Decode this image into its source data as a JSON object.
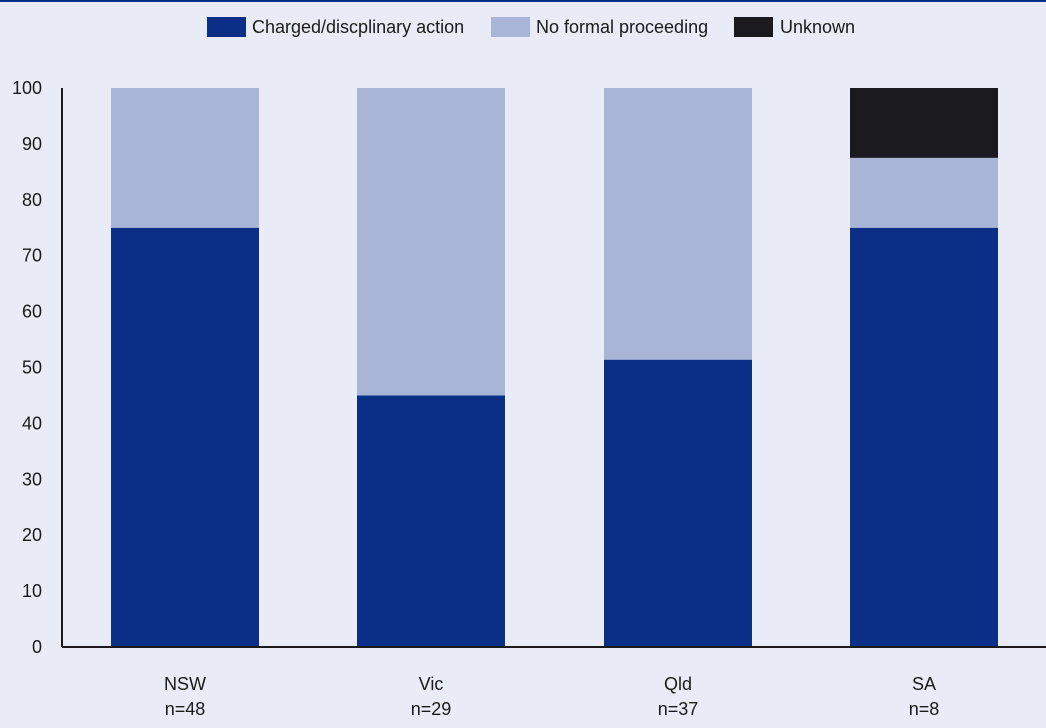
{
  "chart_data": {
    "type": "bar",
    "stacked": true,
    "categories": [
      "NSW",
      "Vic",
      "Qld",
      "SA"
    ],
    "category_sublabels": [
      "n=48",
      "n=29",
      "n=37",
      "n=8"
    ],
    "series": [
      {
        "name": "Charged/discplinary action",
        "color": "#0b2f86",
        "values": [
          75,
          45,
          51.4,
          75
        ]
      },
      {
        "name": "No formal proceeding",
        "color": "#a9b5d6",
        "values": [
          25,
          55,
          48.6,
          12.5
        ]
      },
      {
        "name": "Unknown",
        "color": "#1b1b1f",
        "values": [
          0,
          0,
          0,
          12.5
        ]
      }
    ],
    "yticks": [
      0,
      10,
      20,
      30,
      40,
      50,
      60,
      70,
      80,
      90,
      100
    ],
    "ylim": [
      0,
      100
    ],
    "legend_position": "top-center",
    "grid": false,
    "title": "",
    "xlabel": "",
    "ylabel": ""
  }
}
